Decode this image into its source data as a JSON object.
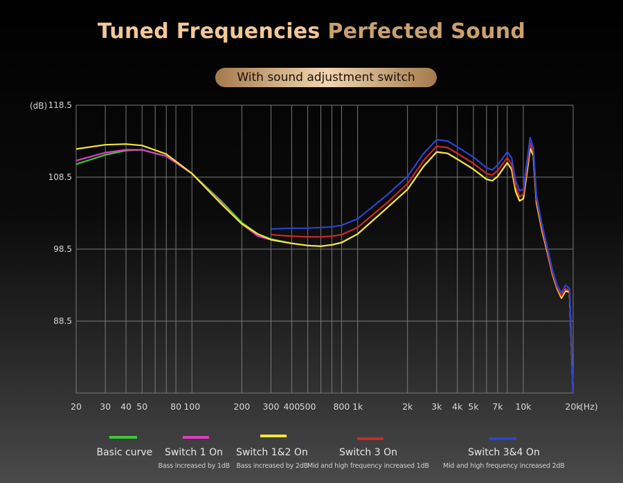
{
  "header": {
    "title_part1": "Tuned Frequencies",
    "title_part2": "Perfected Sound",
    "badge": "With sound adjustment switch"
  },
  "chart_data": {
    "type": "line",
    "y_unit": "(dB)",
    "x_unit": "(Hz)",
    "x_scale": "log",
    "xlim": [
      20,
      20000
    ],
    "ylim": [
      78.5,
      118.5
    ],
    "y_ticks": [
      {
        "value": 118.5,
        "label": "118.5"
      },
      {
        "value": 108.5,
        "label": "108.5"
      },
      {
        "value": 98.5,
        "label": "98.5"
      },
      {
        "value": 88.5,
        "label": "88.5"
      }
    ],
    "x_ticks": [
      {
        "value": 20,
        "label": "20"
      },
      {
        "value": 30,
        "label": "30"
      },
      {
        "value": 40,
        "label": "40"
      },
      {
        "value": 50,
        "label": "50"
      },
      {
        "value": 80,
        "label": "80"
      },
      {
        "value": 100,
        "label": "100"
      },
      {
        "value": 200,
        "label": "200"
      },
      {
        "value": 300,
        "label": "300"
      },
      {
        "value": 400,
        "label": "400"
      },
      {
        "value": 500,
        "label": "500"
      },
      {
        "value": 800,
        "label": "800"
      },
      {
        "value": 1000,
        "label": "1k"
      },
      {
        "value": 2000,
        "label": "2k"
      },
      {
        "value": 3000,
        "label": "3k"
      },
      {
        "value": 4000,
        "label": "4k"
      },
      {
        "value": 5000,
        "label": "5k"
      },
      {
        "value": 7000,
        "label": "7k"
      },
      {
        "value": 10000,
        "label": "10k"
      },
      {
        "value": 20000,
        "label": "20k"
      }
    ],
    "grid_x": [
      20,
      30,
      40,
      50,
      60,
      70,
      80,
      100,
      200,
      300,
      400,
      500,
      600,
      700,
      800,
      1000,
      2000,
      3000,
      4000,
      5000,
      6000,
      7000,
      8000,
      10000,
      20000
    ],
    "grid_y": [
      118.5,
      108.5,
      98.5,
      88.5,
      78.5
    ],
    "series": [
      {
        "name": "Basic curve",
        "color": "#3cc83c",
        "points": [
          [
            20,
            110.3
          ],
          [
            30,
            111.6
          ],
          [
            40,
            112.2
          ],
          [
            50,
            112.3
          ],
          [
            70,
            111.4
          ],
          [
            100,
            109.0
          ],
          [
            150,
            105.2
          ],
          [
            200,
            102.2
          ],
          [
            250,
            100.6
          ],
          [
            300,
            99.9
          ],
          [
            400,
            99.3
          ],
          [
            500,
            99.0
          ],
          [
            600,
            98.9
          ],
          [
            700,
            99.1
          ],
          [
            800,
            99.4
          ],
          [
            1000,
            100.6
          ],
          [
            1500,
            104.2
          ],
          [
            2000,
            106.8
          ],
          [
            2500,
            110.0
          ],
          [
            3000,
            112.0
          ],
          [
            3500,
            111.8
          ],
          [
            4000,
            111.0
          ],
          [
            5000,
            109.6
          ],
          [
            6000,
            108.2
          ],
          [
            6500,
            108.0
          ],
          [
            7000,
            108.6
          ],
          [
            8000,
            110.5
          ],
          [
            8500,
            109.6
          ],
          [
            9000,
            106.5
          ],
          [
            9500,
            105.2
          ],
          [
            10000,
            105.5
          ],
          [
            10500,
            109.0
          ],
          [
            11000,
            112.5
          ],
          [
            11500,
            111.5
          ],
          [
            12000,
            105.0
          ],
          [
            13000,
            101.0
          ],
          [
            14000,
            98.0
          ],
          [
            15000,
            95.0
          ],
          [
            16000,
            93.0
          ],
          [
            17000,
            91.7
          ],
          [
            18000,
            92.7
          ],
          [
            19000,
            92.5
          ],
          [
            20000,
            78.5
          ]
        ]
      },
      {
        "name": "Switch 1 On",
        "color": "#e03cc8",
        "points": [
          [
            20,
            110.8
          ],
          [
            30,
            111.9
          ],
          [
            40,
            112.3
          ],
          [
            50,
            112.3
          ],
          [
            70,
            111.4
          ],
          [
            100,
            109.0
          ],
          [
            150,
            105.0
          ],
          [
            200,
            102.0
          ],
          [
            250,
            100.3
          ],
          [
            300,
            99.8
          ],
          [
            400,
            99.3
          ],
          [
            500,
            99.0
          ],
          [
            600,
            98.9
          ],
          [
            700,
            99.1
          ],
          [
            800,
            99.4
          ],
          [
            1000,
            100.6
          ],
          [
            1500,
            104.2
          ],
          [
            2000,
            106.8
          ],
          [
            2500,
            110.0
          ],
          [
            3000,
            112.0
          ],
          [
            3500,
            111.8
          ],
          [
            4000,
            111.0
          ],
          [
            5000,
            109.6
          ],
          [
            6000,
            108.2
          ],
          [
            6500,
            108.0
          ],
          [
            7000,
            108.6
          ],
          [
            8000,
            110.5
          ],
          [
            8500,
            109.6
          ],
          [
            9000,
            106.5
          ],
          [
            9500,
            105.2
          ],
          [
            10000,
            105.5
          ],
          [
            10500,
            109.0
          ],
          [
            11000,
            112.5
          ],
          [
            11500,
            111.5
          ],
          [
            12000,
            105.0
          ],
          [
            13000,
            101.0
          ],
          [
            14000,
            98.0
          ],
          [
            15000,
            95.0
          ],
          [
            16000,
            93.0
          ],
          [
            17000,
            91.7
          ],
          [
            18000,
            92.7
          ],
          [
            19000,
            92.5
          ],
          [
            20000,
            78.5
          ]
        ]
      },
      {
        "name": "Switch 1&2 On",
        "color": "#f5e638",
        "points": [
          [
            20,
            112.4
          ],
          [
            30,
            113.0
          ],
          [
            40,
            113.1
          ],
          [
            50,
            112.9
          ],
          [
            70,
            111.7
          ],
          [
            100,
            109.0
          ],
          [
            150,
            104.8
          ],
          [
            200,
            102.0
          ],
          [
            250,
            100.6
          ],
          [
            300,
            99.8
          ],
          [
            400,
            99.3
          ],
          [
            500,
            99.0
          ],
          [
            600,
            98.9
          ],
          [
            700,
            99.1
          ],
          [
            800,
            99.4
          ],
          [
            1000,
            100.6
          ],
          [
            1500,
            104.2
          ],
          [
            2000,
            106.8
          ],
          [
            2500,
            110.0
          ],
          [
            3000,
            112.0
          ],
          [
            3500,
            111.8
          ],
          [
            4000,
            111.0
          ],
          [
            5000,
            109.6
          ],
          [
            6000,
            108.2
          ],
          [
            6500,
            108.0
          ],
          [
            7000,
            108.6
          ],
          [
            8000,
            110.5
          ],
          [
            8500,
            109.6
          ],
          [
            9000,
            106.5
          ],
          [
            9500,
            105.2
          ],
          [
            10000,
            105.5
          ],
          [
            10500,
            109.0
          ],
          [
            11000,
            112.5
          ],
          [
            11500,
            111.5
          ],
          [
            12000,
            105.0
          ],
          [
            13000,
            101.0
          ],
          [
            14000,
            98.0
          ],
          [
            15000,
            95.0
          ],
          [
            16000,
            93.0
          ],
          [
            17000,
            91.7
          ],
          [
            18000,
            92.7
          ],
          [
            19000,
            92.5
          ],
          [
            20000,
            78.5
          ]
        ]
      },
      {
        "name": "Switch 3 On",
        "color": "#d02828",
        "points": [
          [
            300,
            100.5
          ],
          [
            400,
            100.3
          ],
          [
            500,
            100.2
          ],
          [
            600,
            100.2
          ],
          [
            700,
            100.3
          ],
          [
            800,
            100.5
          ],
          [
            1000,
            101.5
          ],
          [
            1500,
            104.9
          ],
          [
            2000,
            107.6
          ],
          [
            2500,
            110.8
          ],
          [
            3000,
            112.8
          ],
          [
            3500,
            112.6
          ],
          [
            4000,
            111.8
          ],
          [
            5000,
            110.4
          ],
          [
            6000,
            109.0
          ],
          [
            6500,
            108.8
          ],
          [
            7000,
            109.4
          ],
          [
            8000,
            111.2
          ],
          [
            8500,
            110.3
          ],
          [
            9000,
            107.2
          ],
          [
            9500,
            105.8
          ],
          [
            10000,
            106.1
          ],
          [
            10500,
            109.7
          ],
          [
            11000,
            113.2
          ],
          [
            11500,
            112.0
          ],
          [
            12000,
            105.5
          ],
          [
            13000,
            101.4
          ],
          [
            14000,
            98.3
          ],
          [
            15000,
            95.2
          ],
          [
            16000,
            93.2
          ],
          [
            17000,
            92.0
          ],
          [
            18000,
            93.0
          ],
          [
            19000,
            92.7
          ],
          [
            20000,
            78.5
          ]
        ]
      },
      {
        "name": "Switch 3&4 On",
        "color": "#2a44d6",
        "points": [
          [
            300,
            101.3
          ],
          [
            400,
            101.4
          ],
          [
            500,
            101.4
          ],
          [
            600,
            101.5
          ],
          [
            700,
            101.6
          ],
          [
            800,
            101.8
          ],
          [
            1000,
            102.7
          ],
          [
            1500,
            106.0
          ],
          [
            2000,
            108.6
          ],
          [
            2500,
            111.8
          ],
          [
            3000,
            113.7
          ],
          [
            3500,
            113.5
          ],
          [
            4000,
            112.7
          ],
          [
            5000,
            111.3
          ],
          [
            6000,
            109.8
          ],
          [
            6500,
            109.5
          ],
          [
            7000,
            110.2
          ],
          [
            8000,
            112.0
          ],
          [
            8500,
            111.2
          ],
          [
            9000,
            108.0
          ],
          [
            9500,
            106.6
          ],
          [
            10000,
            106.8
          ],
          [
            10500,
            110.4
          ],
          [
            11000,
            114.0
          ],
          [
            11500,
            112.6
          ],
          [
            12000,
            106.0
          ],
          [
            13000,
            101.8
          ],
          [
            14000,
            98.7
          ],
          [
            15000,
            95.6
          ],
          [
            16000,
            93.5
          ],
          [
            17000,
            92.4
          ],
          [
            18000,
            93.5
          ],
          [
            19000,
            93.0
          ],
          [
            20000,
            78.5
          ]
        ]
      }
    ],
    "legend": [
      {
        "label": "Basic curve",
        "sub": "",
        "color": "#3cc83c"
      },
      {
        "label": "Switch 1 On",
        "sub": "Bass increased by 1dB",
        "color": "#e03cc8"
      },
      {
        "label": "Switch 1&2 On",
        "sub": "Bass increased by 2dB",
        "color": "#f5e638"
      },
      {
        "label": "Switch 3 On",
        "sub": "Mid and high frequency increased 1dB",
        "color": "#d02828"
      },
      {
        "label": "Switch 3&4 On",
        "sub": "Mid and high frequency increased 2dB",
        "color": "#2a44d6"
      }
    ],
    "grid": true,
    "legend_position": "bottom"
  }
}
